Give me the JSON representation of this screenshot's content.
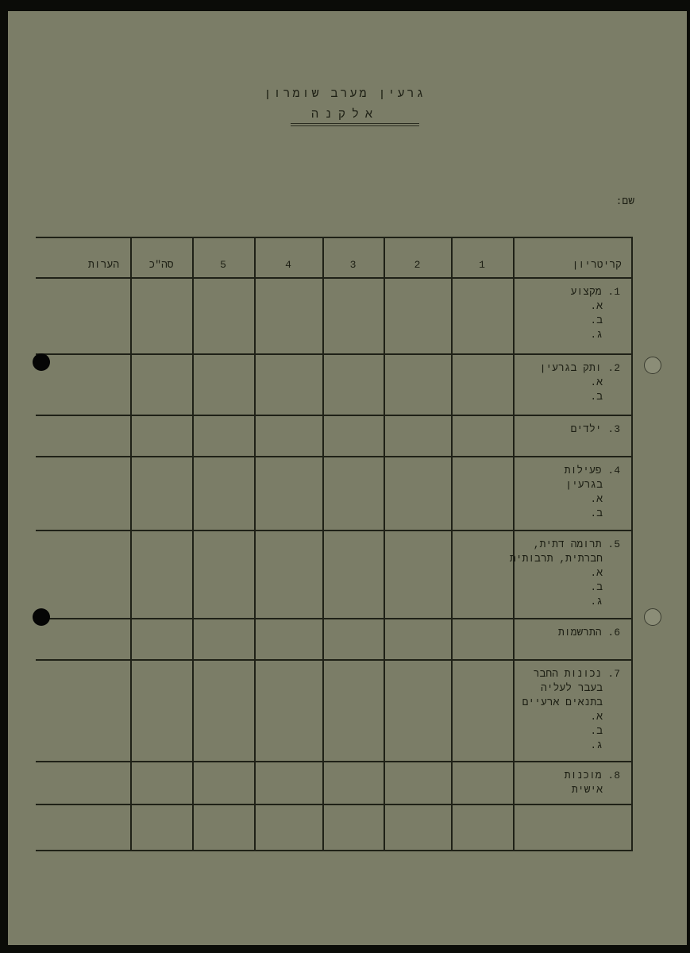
{
  "header": {
    "title": "גרעין מערב שומרון",
    "subtitle": "אלקנה",
    "name_label": "שם:"
  },
  "table": {
    "columns": [
      "קריטריון",
      "1",
      "2",
      "3",
      "4",
      "5",
      "סה\"כ",
      "הערות"
    ],
    "rows": [
      {
        "title": "1. מקצוע",
        "items": [
          "א.",
          "ב.",
          "ג."
        ]
      },
      {
        "title": "2. ותק בגרעין",
        "items": [
          "א.",
          "ב."
        ]
      },
      {
        "title": "3. ילדים",
        "items": []
      },
      {
        "title": "4. פעילות",
        "title2": "בגרעין",
        "items": [
          "א.",
          "ב."
        ]
      },
      {
        "title": "5. תרומה דתית,",
        "title2": "חברתית, תרבותית",
        "items": [
          "א.",
          "ב.",
          "ג."
        ]
      },
      {
        "title": "6. התרשמות",
        "items": []
      },
      {
        "title": "7. נכונות החבר",
        "title2": "בעבר לעליה",
        "title3": "בתנאים ארעיים",
        "items": [
          "א.",
          "ב.",
          "ג."
        ]
      },
      {
        "title": "8. מוכנות",
        "title2": "אישית",
        "items": []
      },
      {
        "title": "",
        "items": []
      }
    ]
  }
}
